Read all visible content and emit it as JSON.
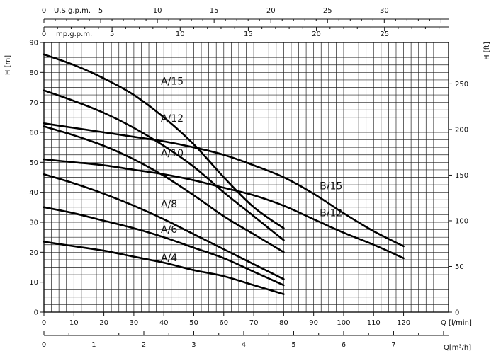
{
  "chart_data": {
    "type": "line",
    "title": "",
    "ylabel_left": "H [m]",
    "ylabel_right": "H [ft]",
    "xlabel_lpm": "Q [l/min]",
    "xlabel_m3h": "Q[m³/h]",
    "top_axis_usgpm_label": "U.S.g.p.m.",
    "top_axis_impgpm_label": "Imp.g.p.m.",
    "xlim_lpm": [
      0,
      135
    ],
    "ylim_m": [
      0,
      90
    ],
    "grid": true,
    "axes": {
      "left_m_ticks": [
        "0",
        "10",
        "20",
        "30",
        "40",
        "50",
        "60",
        "70",
        "80",
        "90"
      ],
      "right_ft_ticks": [
        "0",
        "50",
        "100",
        "150",
        "200",
        "250"
      ],
      "bottom_lpm_ticks": [
        "0",
        "10",
        "20",
        "30",
        "40",
        "50",
        "60",
        "70",
        "80",
        "90",
        "100",
        "110",
        "120"
      ],
      "bottom_m3h_ticks": [
        "0",
        "1",
        "2",
        "3",
        "4",
        "5",
        "6",
        "7"
      ],
      "top_usgpm_ticks": [
        "0",
        "5",
        "10",
        "15",
        "20",
        "25",
        "30"
      ],
      "top_impgpm_ticks": [
        "0",
        "5",
        "10",
        "15",
        "20",
        "25"
      ]
    },
    "series": [
      {
        "name": "A/15",
        "x": [
          0,
          10,
          20,
          30,
          40,
          50,
          60,
          70,
          80
        ],
        "y": [
          86,
          82.5,
          78,
          72.5,
          65,
          56,
          45,
          35,
          28
        ]
      },
      {
        "name": "A/12",
        "x": [
          0,
          10,
          20,
          30,
          40,
          50,
          60,
          70,
          80
        ],
        "y": [
          74,
          70.5,
          66.5,
          61.5,
          55.5,
          48.5,
          40,
          32,
          24
        ]
      },
      {
        "name": "A/10",
        "x": [
          0,
          10,
          20,
          30,
          40,
          50,
          60,
          70,
          80
        ],
        "y": [
          62,
          59,
          55.5,
          51,
          45.5,
          39,
          32,
          26,
          20
        ]
      },
      {
        "name": "A/8",
        "x": [
          0,
          10,
          20,
          30,
          40,
          50,
          60,
          70,
          80
        ],
        "y": [
          46,
          43,
          39.5,
          35.5,
          31,
          26,
          21,
          16,
          11
        ]
      },
      {
        "name": "A/6",
        "x": [
          0,
          10,
          20,
          30,
          40,
          50,
          60,
          70,
          80
        ],
        "y": [
          35,
          33,
          30.5,
          28,
          25,
          21.5,
          18,
          13.5,
          9
        ]
      },
      {
        "name": "A/4",
        "x": [
          0,
          10,
          20,
          30,
          40,
          50,
          60,
          70,
          80
        ],
        "y": [
          23.5,
          22,
          20.5,
          18.5,
          16.5,
          14,
          12,
          9,
          6
        ]
      },
      {
        "name": "B/15",
        "x": [
          0,
          10,
          20,
          30,
          40,
          50,
          60,
          70,
          80,
          90,
          100,
          110,
          120
        ],
        "y": [
          63,
          61.5,
          60,
          58.5,
          57,
          55,
          52.5,
          49,
          45,
          39.5,
          33,
          27,
          22
        ]
      },
      {
        "name": "B/12",
        "x": [
          0,
          10,
          20,
          30,
          40,
          50,
          60,
          70,
          80,
          90,
          100,
          110,
          120
        ],
        "y": [
          51,
          50,
          49,
          47.5,
          46,
          44,
          41.5,
          39,
          35.5,
          31,
          26.5,
          22.5,
          18
        ]
      }
    ]
  }
}
